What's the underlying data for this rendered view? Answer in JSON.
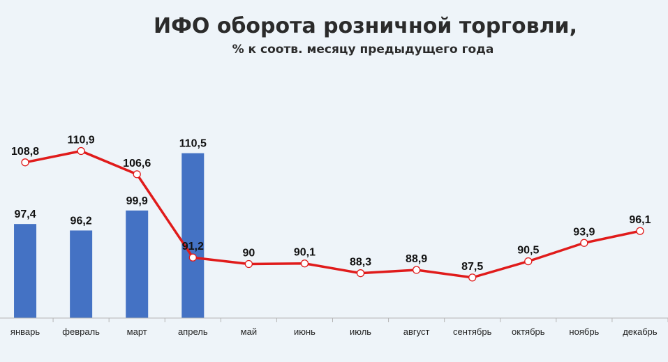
{
  "title": "ИФО оборота розничной торговли,",
  "subtitle": "% к соотв. месяцу предыдущего года",
  "colors": {
    "bar": "#4472c4",
    "line": "#e01b1b",
    "marker_fill": "#ffffff",
    "background": "#eef4f9",
    "axis": "#b5b5b5"
  },
  "chart_data": {
    "type": "bar",
    "categories": [
      "январь",
      "февраль",
      "март",
      "апрель",
      "май",
      "июнь",
      "июль",
      "август",
      "сентябрь",
      "октябрь",
      "ноябрь",
      "декабрь"
    ],
    "series": [
      {
        "type": "bar",
        "values": [
          97.4,
          96.2,
          99.9,
          110.5,
          null,
          null,
          null,
          null,
          null,
          null,
          null,
          null
        ],
        "labels": [
          "97,4",
          "96,2",
          "99,9",
          "110,5",
          "",
          "",
          "",
          "",
          "",
          "",
          "",
          ""
        ]
      },
      {
        "type": "line",
        "values": [
          108.8,
          110.9,
          106.6,
          91.2,
          90,
          90.1,
          88.3,
          88.9,
          87.5,
          90.5,
          93.9,
          96.1
        ],
        "labels": [
          "108,8",
          "110,9",
          "106,6",
          "91,2",
          "90",
          "90,1",
          "88,3",
          "88,9",
          "87,5",
          "90,5",
          "93,9",
          "96,1"
        ]
      }
    ],
    "ylim": [
      80,
      113
    ],
    "grid": false,
    "legend": "none"
  }
}
